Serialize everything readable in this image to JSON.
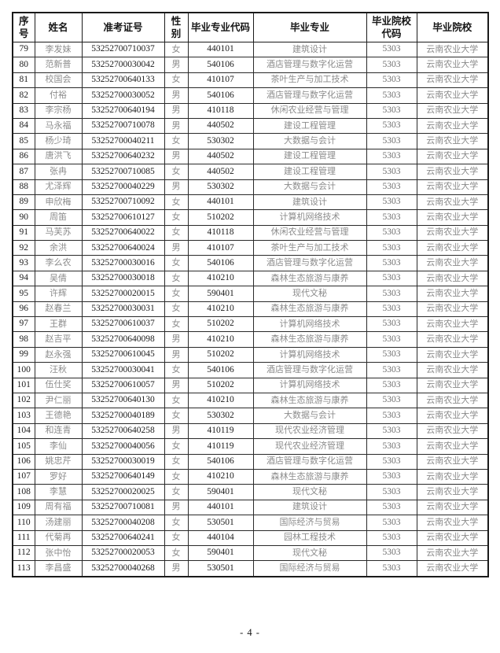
{
  "page": {
    "footer": "- 4 -"
  },
  "colors": {
    "border": "#1a1a1a",
    "header_text": "#161616",
    "numeric_text": "#1c1c1c",
    "cjk_data_text": "#8b8b8b",
    "school_code_text": "#6f6f6f",
    "background": "#ffffff"
  },
  "table": {
    "headers": [
      "序号",
      "姓名",
      "准考证号",
      "性别",
      "毕业专业代码",
      "毕业专业",
      "毕业院校代码",
      "毕业院校"
    ],
    "rows": [
      [
        "79",
        "李发妹",
        "53252700710037",
        "女",
        "440101",
        "建筑设计",
        "5303",
        "云南农业大学"
      ],
      [
        "80",
        "范新普",
        "53252700030042",
        "男",
        "540106",
        "酒店管理与数字化运营",
        "5303",
        "云南农业大学"
      ],
      [
        "81",
        "校国会",
        "53252700640133",
        "女",
        "410107",
        "茶叶生产与加工技术",
        "5303",
        "云南农业大学"
      ],
      [
        "82",
        "付裕",
        "53252700030052",
        "男",
        "540106",
        "酒店管理与数字化运营",
        "5303",
        "云南农业大学"
      ],
      [
        "83",
        "李宗杨",
        "53252700640194",
        "男",
        "410118",
        "休闲农业经营与管理",
        "5303",
        "云南农业大学"
      ],
      [
        "84",
        "马永福",
        "53252700710078",
        "男",
        "440502",
        "建设工程管理",
        "5303",
        "云南农业大学"
      ],
      [
        "85",
        "杨少琦",
        "53252700040211",
        "女",
        "530302",
        "大数据与会计",
        "5303",
        "云南农业大学"
      ],
      [
        "86",
        "唐洪飞",
        "53252700640232",
        "男",
        "440502",
        "建设工程管理",
        "5303",
        "云南农业大学"
      ],
      [
        "87",
        "张冉",
        "53252700710085",
        "女",
        "440502",
        "建设工程管理",
        "5303",
        "云南农业大学"
      ],
      [
        "88",
        "尤泽辉",
        "53252700040229",
        "男",
        "530302",
        "大数据与会计",
        "5303",
        "云南农业大学"
      ],
      [
        "89",
        "申欣梅",
        "53252700710092",
        "女",
        "440101",
        "建筑设计",
        "5303",
        "云南农业大学"
      ],
      [
        "90",
        "周笛",
        "53252700610127",
        "女",
        "510202",
        "计算机网络技术",
        "5303",
        "云南农业大学"
      ],
      [
        "91",
        "马芙苏",
        "53252700640022",
        "女",
        "410118",
        "休闲农业经营与管理",
        "5303",
        "云南农业大学"
      ],
      [
        "92",
        "余洪",
        "53252700640024",
        "男",
        "410107",
        "茶叶生产与加工技术",
        "5303",
        "云南农业大学"
      ],
      [
        "93",
        "李么农",
        "53252700030016",
        "女",
        "540106",
        "酒店管理与数字化运营",
        "5303",
        "云南农业大学"
      ],
      [
        "94",
        "吴倩",
        "53252700030018",
        "女",
        "410210",
        "森林生态旅游与康养",
        "5303",
        "云南农业大学"
      ],
      [
        "95",
        "许辉",
        "53252700020015",
        "女",
        "590401",
        "现代文秘",
        "5303",
        "云南农业大学"
      ],
      [
        "96",
        "赵春兰",
        "53252700030031",
        "女",
        "410210",
        "森林生态旅游与康养",
        "5303",
        "云南农业大学"
      ],
      [
        "97",
        "王群",
        "53252700610037",
        "女",
        "510202",
        "计算机网络技术",
        "5303",
        "云南农业大学"
      ],
      [
        "98",
        "赵吉平",
        "53252700640098",
        "男",
        "410210",
        "森林生态旅游与康养",
        "5303",
        "云南农业大学"
      ],
      [
        "99",
        "赵永强",
        "53252700610045",
        "男",
        "510202",
        "计算机网络技术",
        "5303",
        "云南农业大学"
      ],
      [
        "100",
        "汪秋",
        "53252700030041",
        "女",
        "540106",
        "酒店管理与数字化运营",
        "5303",
        "云南农业大学"
      ],
      [
        "101",
        "伍仕奖",
        "53252700610057",
        "男",
        "510202",
        "计算机网络技术",
        "5303",
        "云南农业大学"
      ],
      [
        "102",
        "尹仁丽",
        "53252700640130",
        "女",
        "410210",
        "森林生态旅游与康养",
        "5303",
        "云南农业大学"
      ],
      [
        "103",
        "王德艳",
        "53252700040189",
        "女",
        "530302",
        "大数据与会计",
        "5303",
        "云南农业大学"
      ],
      [
        "104",
        "和连青",
        "53252700640258",
        "男",
        "410119",
        "现代农业经济管理",
        "5303",
        "云南农业大学"
      ],
      [
        "105",
        "李仙",
        "53252700040056",
        "女",
        "410119",
        "现代农业经济管理",
        "5303",
        "云南农业大学"
      ],
      [
        "106",
        "姚忠芹",
        "53252700030019",
        "女",
        "540106",
        "酒店管理与数字化运营",
        "5303",
        "云南农业大学"
      ],
      [
        "107",
        "罗好",
        "53252700640149",
        "女",
        "410210",
        "森林生态旅游与康养",
        "5303",
        "云南农业大学"
      ],
      [
        "108",
        "李慧",
        "53252700020025",
        "女",
        "590401",
        "现代文秘",
        "5303",
        "云南农业大学"
      ],
      [
        "109",
        "周有福",
        "53252700710081",
        "男",
        "440101",
        "建筑设计",
        "5303",
        "云南农业大学"
      ],
      [
        "110",
        "汤建丽",
        "53252700040208",
        "女",
        "530501",
        "国际经济与贸易",
        "5303",
        "云南农业大学"
      ],
      [
        "111",
        "代菊再",
        "53252700640241",
        "女",
        "440104",
        "园林工程技术",
        "5303",
        "云南农业大学"
      ],
      [
        "112",
        "张中怡",
        "53252700020053",
        "女",
        "590401",
        "现代文秘",
        "5303",
        "云南农业大学"
      ],
      [
        "113",
        "李昌盛",
        "53252700040268",
        "男",
        "530501",
        "国际经济与贸易",
        "5303",
        "云南农业大学"
      ]
    ]
  }
}
